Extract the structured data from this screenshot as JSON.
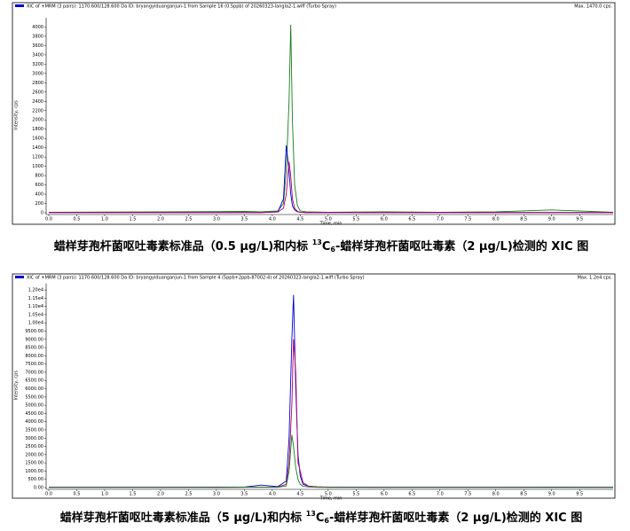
{
  "chart_data": [
    {
      "type": "line",
      "header": "XIC of +MRM (3 pairs): 1170.600/128.600 Da ID: bryangyiduanganjun-1 from Sample 16 (0.5ppb) of 20260323-langla2-1.wiff (Turbo Spray)",
      "max_label": "Max. 1470.0 cps.",
      "ylabel": "Intensity, cps",
      "xlabel": "Time, min",
      "caption": [
        "蜡样芽孢杆菌呕吐毒素标准品（0.5 μg/L)和内标 ",
        "13",
        "C",
        "6",
        "-蜡样芽孢杆菌呕吐毒素（2 μg/L)检测的 XIC 图"
      ],
      "x": [
        0,
        1,
        2,
        3,
        3.5,
        3.8,
        4.1,
        4.2,
        4.25,
        4.3,
        4.33,
        4.36,
        4.4,
        4.45,
        4.5,
        4.6,
        4.8,
        5,
        6,
        7,
        8,
        9,
        10,
        10.1
      ],
      "series": [
        {
          "color": "#1a7a1a",
          "values": [
            10,
            15,
            20,
            25,
            30,
            20,
            40,
            200,
            900,
            2400,
            4050,
            2000,
            600,
            150,
            40,
            20,
            15,
            10,
            20,
            10,
            20,
            60,
            15,
            10
          ]
        },
        {
          "color": "#0000cc",
          "values": [
            5,
            5,
            5,
            5,
            5,
            5,
            20,
            300,
            1450,
            900,
            400,
            150,
            60,
            20,
            10,
            5,
            5,
            5,
            5,
            5,
            5,
            5,
            5,
            5
          ]
        },
        {
          "color": "#b0006a",
          "values": [
            5,
            5,
            5,
            5,
            5,
            5,
            15,
            100,
            400,
            1100,
            800,
            300,
            100,
            30,
            10,
            5,
            5,
            5,
            5,
            5,
            5,
            5,
            5,
            5
          ]
        }
      ],
      "xlim": [
        0,
        10.1
      ],
      "ylim": [
        0,
        4200
      ],
      "xticks": [
        {
          "value": 0,
          "label": "0.0"
        },
        {
          "value": 0.5,
          "label": "0.5"
        },
        {
          "value": 1,
          "label": "1.0"
        },
        {
          "value": 1.5,
          "label": "1.5"
        },
        {
          "value": 2,
          "label": "2.0"
        },
        {
          "value": 2.5,
          "label": "2.5"
        },
        {
          "value": 3,
          "label": "3.0"
        },
        {
          "value": 3.5,
          "label": "3.5"
        },
        {
          "value": 4,
          "label": "4.0"
        },
        {
          "value": 4.5,
          "label": "4.5"
        },
        {
          "value": 5,
          "label": "5.0"
        },
        {
          "value": 5.5,
          "label": "5.5"
        },
        {
          "value": 6,
          "label": "6.0"
        },
        {
          "value": 6.5,
          "label": "6.5"
        },
        {
          "value": 7,
          "label": "7.0"
        },
        {
          "value": 7.5,
          "label": "7.5"
        },
        {
          "value": 8,
          "label": "8.0"
        },
        {
          "value": 8.5,
          "label": "8.5"
        },
        {
          "value": 9,
          "label": "9.0"
        },
        {
          "value": 9.5,
          "label": "9.5"
        }
      ],
      "yticks": [
        0,
        200,
        400,
        600,
        800,
        1000,
        1200,
        1400,
        1600,
        1800,
        2000,
        2200,
        2400,
        2600,
        2800,
        3000,
        3200,
        3400,
        3600,
        3800,
        4000
      ]
    },
    {
      "type": "line",
      "header": "XIC of +MRM (3 pairs): 1170.600/128.600 Da ID: bryangyiduanganjun-1 from Sample 4 (5ppb+2ppb-87002-4) of 20260323-langla2-1.wiff (Turbo Spray)",
      "max_label": "Max. 1.2e4 cps.",
      "ylabel": "Intensity, cps",
      "xlabel": "Time, min",
      "caption": [
        "蜡样芽孢杆菌呕吐毒素标准品（5 μg/L)和内标 ",
        "13",
        "C",
        "6",
        "-蜡样芽孢杆菌呕吐毒素（2 μg/L)检测的 XIC 图"
      ],
      "x": [
        0,
        1,
        2,
        3,
        3.5,
        3.8,
        4.1,
        4.25,
        4.3,
        4.35,
        4.38,
        4.42,
        4.46,
        4.5,
        4.55,
        4.65,
        4.8,
        5,
        6,
        7,
        8,
        9,
        10,
        10.1
      ],
      "series": [
        {
          "color": "#0000cc",
          "values": [
            20,
            20,
            20,
            30,
            30,
            150,
            60,
            400,
            3000,
            9000,
            11700,
            6000,
            2000,
            700,
            200,
            80,
            40,
            30,
            20,
            20,
            20,
            30,
            20,
            20
          ]
        },
        {
          "color": "#b0006a",
          "values": [
            10,
            10,
            10,
            10,
            20,
            30,
            30,
            200,
            1500,
            5000,
            9000,
            7000,
            1500,
            1000,
            300,
            80,
            40,
            20,
            10,
            10,
            10,
            10,
            10,
            10
          ]
        },
        {
          "color": "#1a7a1a",
          "values": [
            10,
            10,
            10,
            10,
            20,
            20,
            20,
            100,
            1000,
            3200,
            2500,
            1200,
            500,
            200,
            80,
            40,
            20,
            10,
            10,
            10,
            10,
            10,
            10,
            10
          ]
        }
      ],
      "xlim": [
        0,
        10.1
      ],
      "ylim": [
        0,
        12400
      ],
      "xticks": [
        {
          "value": 0,
          "label": "0.0"
        },
        {
          "value": 0.5,
          "label": "0.5"
        },
        {
          "value": 1,
          "label": "1.0"
        },
        {
          "value": 1.5,
          "label": "1.5"
        },
        {
          "value": 2,
          "label": "2.0"
        },
        {
          "value": 2.5,
          "label": "2.5"
        },
        {
          "value": 3,
          "label": "3.0"
        },
        {
          "value": 3.5,
          "label": "3.5"
        },
        {
          "value": 4,
          "label": "4.0"
        },
        {
          "value": 4.5,
          "label": "4.5"
        },
        {
          "value": 5,
          "label": "5.0"
        },
        {
          "value": 5.5,
          "label": "5.5"
        },
        {
          "value": 6,
          "label": "6.0"
        },
        {
          "value": 6.5,
          "label": "6.5"
        },
        {
          "value": 7,
          "label": "7.0"
        },
        {
          "value": 7.5,
          "label": "7.5"
        },
        {
          "value": 8,
          "label": "8.0"
        },
        {
          "value": 8.5,
          "label": "8.5"
        },
        {
          "value": 9,
          "label": "9.0"
        },
        {
          "value": 9.5,
          "label": "9.5"
        }
      ],
      "yticks": [
        {
          "value": 0,
          "label": "0.00"
        },
        {
          "value": 500,
          "label": "500.00"
        },
        {
          "value": 1000,
          "label": "1000.00"
        },
        {
          "value": 1500,
          "label": "1500.00"
        },
        {
          "value": 2000,
          "label": "2000.00"
        },
        {
          "value": 2500,
          "label": "2500.00"
        },
        {
          "value": 3000,
          "label": "3000.00"
        },
        {
          "value": 3500,
          "label": "3500.00"
        },
        {
          "value": 4000,
          "label": "4000.00"
        },
        {
          "value": 4500,
          "label": "4500.00"
        },
        {
          "value": 5000,
          "label": "5000.00"
        },
        {
          "value": 5500,
          "label": "5500.00"
        },
        {
          "value": 6000,
          "label": "6000.00"
        },
        {
          "value": 6500,
          "label": "6500.00"
        },
        {
          "value": 7000,
          "label": "7000.00"
        },
        {
          "value": 7500,
          "label": "7500.00"
        },
        {
          "value": 8000,
          "label": "8000.00"
        },
        {
          "value": 8500,
          "label": "8500.00"
        },
        {
          "value": 9000,
          "label": "9000.00"
        },
        {
          "value": 9500,
          "label": "9500.00"
        },
        {
          "value": 10000,
          "label": "1.00e4"
        },
        {
          "value": 10500,
          "label": "1.05e4"
        },
        {
          "value": 11000,
          "label": "1.10e4"
        },
        {
          "value": 11500,
          "label": "1.15e4"
        },
        {
          "value": 12000,
          "label": "1.20e4"
        }
      ]
    }
  ]
}
